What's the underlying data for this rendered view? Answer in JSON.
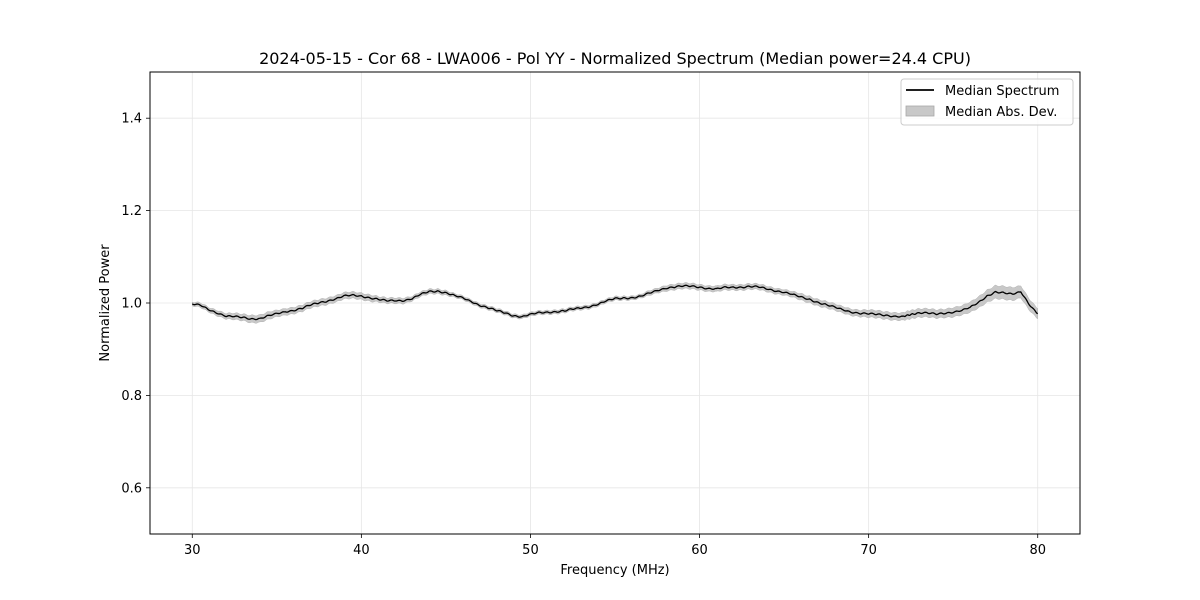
{
  "chart_data": {
    "type": "line",
    "title": "2024-05-15 - Cor 68 - LWA006 - Pol YY - Normalized Spectrum (Median power=24.4 CPU)",
    "xlabel": "Frequency (MHz)",
    "ylabel": "Normalized Power",
    "xlim": [
      27.5,
      82.5
    ],
    "ylim": [
      0.5,
      1.5
    ],
    "xticks": [
      30,
      40,
      50,
      60,
      70,
      80
    ],
    "yticks": [
      0.6,
      0.8,
      1.0,
      1.2,
      1.4
    ],
    "xtick_labels": [
      "30",
      "40",
      "50",
      "60",
      "70",
      "80"
    ],
    "ytick_labels": [
      "0.6",
      "0.8",
      "1.0",
      "1.2",
      "1.4"
    ],
    "grid": true,
    "legend_position": "upper-right",
    "legend": [
      {
        "label": "Median Spectrum",
        "kind": "line",
        "color": "#000000"
      },
      {
        "label": "Median Abs. Dev.",
        "kind": "band",
        "color": "#c8c8c8"
      }
    ],
    "series": [
      {
        "name": "Median Spectrum",
        "x": [
          30,
          30.5,
          31,
          31.5,
          32,
          32.5,
          33,
          33.5,
          34,
          34.5,
          35,
          35.5,
          36,
          36.5,
          37,
          37.5,
          38,
          38.5,
          39,
          39.5,
          40,
          40.5,
          41,
          41.5,
          42,
          42.5,
          43,
          43.5,
          44,
          44.5,
          45,
          45.5,
          46,
          46.5,
          47,
          47.5,
          48,
          48.5,
          49,
          49.5,
          50,
          50.5,
          51,
          51.5,
          52,
          52.5,
          53,
          53.5,
          54,
          54.5,
          55,
          55.5,
          56,
          56.5,
          57,
          57.5,
          58,
          58.5,
          59,
          59.5,
          60,
          60.5,
          61,
          61.5,
          62,
          62.5,
          63,
          63.5,
          64,
          64.5,
          65,
          65.5,
          66,
          66.5,
          67,
          67.5,
          68,
          68.5,
          69,
          69.5,
          70,
          70.5,
          71,
          71.5,
          72,
          72.3,
          72.6,
          73,
          73.5,
          74,
          74.5,
          75,
          75.5,
          76,
          76.5,
          77,
          77.5,
          78,
          78.5,
          79,
          79.5,
          80
        ],
        "values": [
          0.998,
          0.994,
          0.985,
          0.979,
          0.972,
          0.97,
          0.968,
          0.966,
          0.967,
          0.972,
          0.976,
          0.981,
          0.985,
          0.989,
          0.995,
          1.0,
          1.005,
          1.01,
          1.015,
          1.016,
          1.015,
          1.012,
          1.008,
          1.004,
          1.005,
          1.006,
          1.01,
          1.018,
          1.024,
          1.026,
          1.023,
          1.016,
          1.01,
          1.003,
          0.996,
          0.99,
          0.983,
          0.978,
          0.973,
          0.971,
          0.975,
          0.978,
          0.98,
          0.982,
          0.983,
          0.986,
          0.989,
          0.993,
          0.998,
          1.004,
          1.009,
          1.011,
          1.012,
          1.014,
          1.02,
          1.027,
          1.033,
          1.035,
          1.036,
          1.036,
          1.035,
          1.032,
          1.03,
          1.033,
          1.034,
          1.035,
          1.036,
          1.034,
          1.03,
          1.027,
          1.024,
          1.018,
          1.012,
          1.008,
          1.002,
          0.996,
          0.99,
          0.985,
          0.981,
          0.978,
          0.976,
          0.975,
          0.974,
          0.972,
          0.97,
          0.972,
          0.976,
          0.98,
          0.979,
          0.975,
          0.977,
          0.981,
          0.985,
          0.99,
          1.0,
          1.015,
          1.025,
          1.022,
          1.018,
          1.024,
          0.998,
          0.977
        ]
      }
    ],
    "band": {
      "name": "Median Abs. Dev.",
      "halfwidth": [
        0.004,
        0.005,
        0.005,
        0.006,
        0.006,
        0.007,
        0.007,
        0.008,
        0.008,
        0.008,
        0.007,
        0.007,
        0.007,
        0.007,
        0.007,
        0.007,
        0.007,
        0.007,
        0.007,
        0.007,
        0.007,
        0.007,
        0.006,
        0.006,
        0.006,
        0.006,
        0.005,
        0.005,
        0.005,
        0.005,
        0.005,
        0.004,
        0.004,
        0.004,
        0.004,
        0.004,
        0.004,
        0.004,
        0.004,
        0.004,
        0.004,
        0.004,
        0.004,
        0.004,
        0.004,
        0.004,
        0.004,
        0.004,
        0.004,
        0.004,
        0.004,
        0.004,
        0.004,
        0.004,
        0.005,
        0.005,
        0.006,
        0.006,
        0.006,
        0.006,
        0.006,
        0.006,
        0.006,
        0.006,
        0.006,
        0.006,
        0.006,
        0.006,
        0.006,
        0.006,
        0.006,
        0.006,
        0.007,
        0.007,
        0.007,
        0.007,
        0.007,
        0.007,
        0.007,
        0.007,
        0.008,
        0.008,
        0.008,
        0.008,
        0.008,
        0.009,
        0.009,
        0.009,
        0.009,
        0.009,
        0.009,
        0.01,
        0.01,
        0.011,
        0.012,
        0.013,
        0.014,
        0.014,
        0.014,
        0.013,
        0.012,
        0.011
      ]
    }
  }
}
